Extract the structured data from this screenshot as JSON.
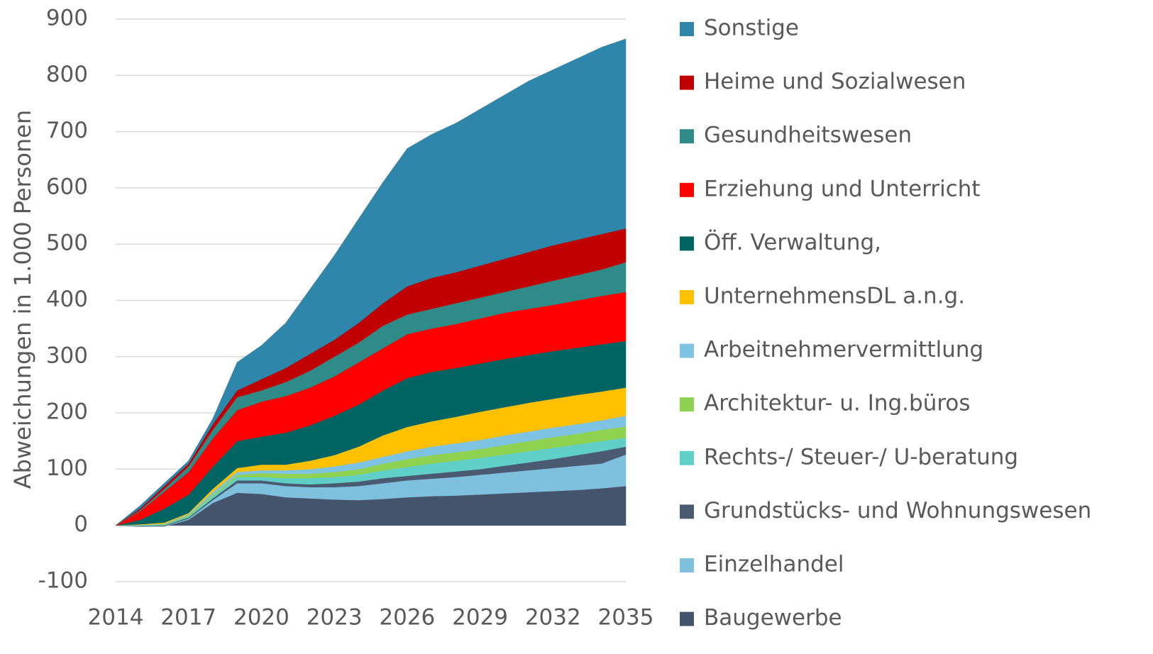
{
  "chart_data": {
    "type": "stacked_area",
    "y_label": "Abweichungen in 1.000 Personen",
    "x": [
      2014,
      2015,
      2016,
      2017,
      2018,
      2019,
      2020,
      2021,
      2022,
      2023,
      2024,
      2025,
      2026,
      2027,
      2028,
      2029,
      2030,
      2031,
      2032,
      2033,
      2034,
      2035
    ],
    "xlim": [
      2014,
      2035
    ],
    "xticks": [
      2014,
      2017,
      2020,
      2023,
      2026,
      2029,
      2032,
      2035
    ],
    "ylim": [
      -100,
      900
    ],
    "yticks": [
      -100,
      0,
      100,
      200,
      300,
      400,
      500,
      600,
      700,
      800,
      900
    ],
    "grid": true,
    "legend": "right",
    "series": [
      {
        "name": "Baugewerbe",
        "color": "#44546a",
        "values": [
          0,
          -2,
          -2,
          10,
          40,
          58,
          56,
          50,
          48,
          46,
          45,
          47,
          50,
          52,
          53,
          55,
          57,
          59,
          61,
          63,
          66,
          70
        ]
      },
      {
        "name": "Einzelhandel",
        "color": "#7fc0de",
        "values": [
          0,
          0,
          1,
          2,
          5,
          17,
          19,
          20,
          20,
          22,
          25,
          28,
          30,
          31,
          33,
          35,
          37,
          39,
          41,
          43,
          44,
          56
        ]
      },
      {
        "name": "Grundstücks- und Wohnungswesen",
        "color": "#4a5a70",
        "values": [
          0,
          1,
          1,
          2,
          3,
          5,
          5,
          5,
          5,
          7,
          8,
          9,
          8,
          9,
          10,
          10,
          12,
          14,
          16,
          19,
          22,
          14
        ]
      },
      {
        "name": "Rechts-/ Steuer-/ U-beratung",
        "color": "#5fcfc8",
        "values": [
          0,
          1,
          1,
          2,
          4,
          6,
          6,
          9,
          11,
          11,
          12,
          14,
          16,
          18,
          19,
          20,
          20,
          20,
          20,
          19,
          18,
          16
        ]
      },
      {
        "name": "Architektur- u. Ing.büros",
        "color": "#8fd150",
        "values": [
          0,
          0,
          1,
          2,
          3,
          4,
          7,
          8,
          8,
          9,
          10,
          12,
          14,
          15,
          15,
          16,
          17,
          18,
          19,
          19,
          20,
          20
        ]
      },
      {
        "name": "Arbeitnehmervermittlung",
        "color": "#7ec4e2",
        "values": [
          0,
          1,
          1,
          2,
          5,
          5,
          5,
          6,
          8,
          10,
          12,
          12,
          14,
          15,
          16,
          16,
          17,
          17,
          17,
          17,
          17,
          19
        ]
      },
      {
        "name": "UnternehmensDL a.n.g.",
        "color": "#ffc000",
        "values": [
          0,
          1,
          2,
          2,
          5,
          7,
          10,
          10,
          15,
          20,
          28,
          38,
          43,
          45,
          47,
          50,
          50,
          51,
          51,
          52,
          51,
          50
        ]
      },
      {
        "name": "Öff. Verwaltung,",
        "color": "#006463",
        "values": [
          0,
          8,
          25,
          33,
          40,
          48,
          50,
          57,
          63,
          70,
          75,
          80,
          87,
          88,
          87,
          86,
          86,
          85,
          85,
          84,
          84,
          83
        ]
      },
      {
        "name": "Erziehung und Unterricht",
        "color": "#ff0000",
        "values": [
          0,
          15,
          30,
          40,
          50,
          55,
          62,
          65,
          67,
          70,
          75,
          75,
          78,
          77,
          78,
          80,
          82,
          82,
          82,
          84,
          86,
          87
        ]
      },
      {
        "name": "Gesundheitswesen",
        "color": "#2e8b87",
        "values": [
          0,
          2,
          5,
          10,
          15,
          23,
          20,
          25,
          30,
          35,
          35,
          40,
          35,
          35,
          37,
          37,
          37,
          40,
          43,
          45,
          47,
          53
        ]
      },
      {
        "name": "Heime und Sozialwesen",
        "color": "#c00000",
        "values": [
          0,
          3,
          5,
          5,
          10,
          12,
          20,
          25,
          30,
          30,
          35,
          40,
          50,
          55,
          55,
          57,
          59,
          61,
          63,
          63,
          63,
          60
        ]
      },
      {
        "name": "Sonstige",
        "color": "#2e86ab",
        "values": [
          0,
          5,
          5,
          5,
          10,
          50,
          60,
          80,
          115,
          150,
          185,
          215,
          245,
          255,
          265,
          278,
          291,
          304,
          312,
          322,
          332,
          337
        ]
      }
    ]
  }
}
